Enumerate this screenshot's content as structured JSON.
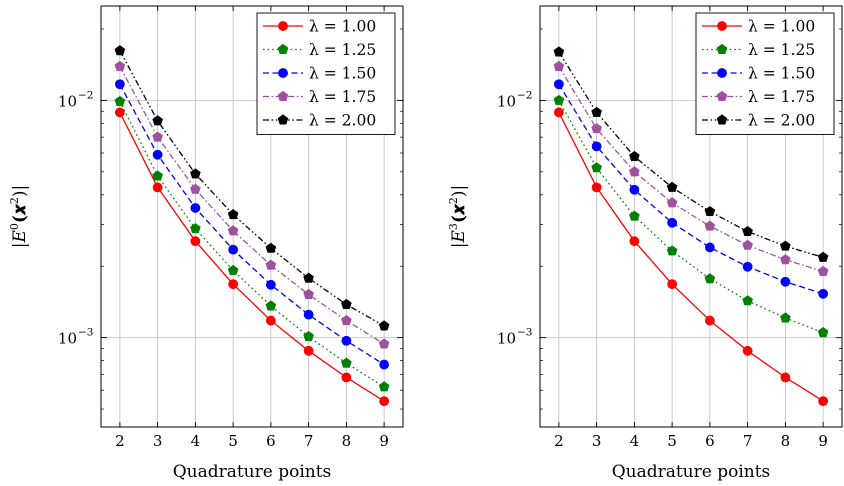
{
  "chart_data": [
    {
      "type": "line",
      "xlabel": "Quadrature points",
      "ylabel": "|E⁰(x²)|",
      "ylabel_base": "|E",
      "ylabel_sup": "0",
      "ylabel_arg": "(𝒙",
      "ylabel_arg_sup": "2",
      "ylabel_close": ")|",
      "yscale": "log",
      "ylim": [
        0.00042,
        0.025
      ],
      "xlim": [
        1.5,
        9.5
      ],
      "x": [
        2,
        3,
        4,
        5,
        6,
        7,
        8,
        9
      ],
      "x_tick_labels": [
        "2",
        "3",
        "4",
        "5",
        "6",
        "7",
        "8",
        "9"
      ],
      "y_ticks": [
        {
          "value": 0.01,
          "base": "10",
          "exp": "−2"
        },
        {
          "value": 0.001,
          "base": "10",
          "exp": "−3"
        }
      ],
      "grid": true,
      "legend_position": "top-right",
      "series": [
        {
          "name": "λ = 1.00",
          "color": "#ff0000",
          "dash": "solid",
          "marker": "circle",
          "values": [
            0.0089,
            0.0043,
            0.00255,
            0.00168,
            0.00118,
            0.00088,
            0.00068,
            0.00054
          ]
        },
        {
          "name": "λ = 1.25",
          "color": "#008000",
          "dash": "dotted",
          "marker": "pentagon",
          "values": [
            0.0099,
            0.0048,
            0.00288,
            0.00192,
            0.00136,
            0.00101,
            0.00078,
            0.00062
          ]
        },
        {
          "name": "λ = 1.50",
          "color": "#0000ff",
          "dash": "dashed",
          "marker": "circle",
          "values": [
            0.0117,
            0.0059,
            0.00352,
            0.00235,
            0.00167,
            0.00125,
            0.00097,
            0.00077
          ]
        },
        {
          "name": "λ = 1.75",
          "color": "#a050a0",
          "dash": "dashdot",
          "marker": "pentagon",
          "values": [
            0.0139,
            0.007,
            0.00422,
            0.00282,
            0.00202,
            0.00152,
            0.00118,
            0.00094
          ]
        },
        {
          "name": "λ = 2.00",
          "color": "#000000",
          "dash": "dashdotdot",
          "marker": "pentagon",
          "values": [
            0.0162,
            0.0082,
            0.0049,
            0.0033,
            0.00238,
            0.00178,
            0.00138,
            0.00112
          ]
        }
      ]
    },
    {
      "type": "line",
      "xlabel": "Quadrature points",
      "ylabel": "|E³(x²)|",
      "ylabel_base": "|E",
      "ylabel_sup": "3",
      "ylabel_arg": "(𝒙",
      "ylabel_arg_sup": "2",
      "ylabel_close": ")|",
      "yscale": "log",
      "ylim": [
        0.00042,
        0.025
      ],
      "xlim": [
        1.5,
        9.5
      ],
      "x": [
        2,
        3,
        4,
        5,
        6,
        7,
        8,
        9
      ],
      "x_tick_labels": [
        "2",
        "3",
        "4",
        "5",
        "6",
        "7",
        "8",
        "9"
      ],
      "y_ticks": [
        {
          "value": 0.01,
          "base": "10",
          "exp": "−2"
        },
        {
          "value": 0.001,
          "base": "10",
          "exp": "−3"
        }
      ],
      "grid": true,
      "legend_position": "top-right",
      "series": [
        {
          "name": "λ = 1.00",
          "color": "#ff0000",
          "dash": "solid",
          "marker": "circle",
          "values": [
            0.0089,
            0.0043,
            0.00255,
            0.00168,
            0.00118,
            0.00088,
            0.00068,
            0.00054
          ]
        },
        {
          "name": "λ = 1.25",
          "color": "#008000",
          "dash": "dotted",
          "marker": "pentagon",
          "values": [
            0.01,
            0.0052,
            0.00325,
            0.00232,
            0.00177,
            0.00143,
            0.00121,
            0.00105
          ]
        },
        {
          "name": "λ = 1.50",
          "color": "#0000ff",
          "dash": "dashed",
          "marker": "circle",
          "values": [
            0.0117,
            0.0064,
            0.0042,
            0.00305,
            0.0024,
            0.00199,
            0.00172,
            0.00153
          ]
        },
        {
          "name": "λ = 1.75",
          "color": "#a050a0",
          "dash": "dashdot",
          "marker": "pentagon",
          "values": [
            0.0139,
            0.0076,
            0.005,
            0.0037,
            0.00295,
            0.00245,
            0.00213,
            0.0019
          ]
        },
        {
          "name": "λ = 2.00",
          "color": "#000000",
          "dash": "dashdotdot",
          "marker": "pentagon",
          "values": [
            0.016,
            0.0089,
            0.0058,
            0.0043,
            0.0034,
            0.0028,
            0.00243,
            0.00218
          ]
        }
      ]
    }
  ]
}
